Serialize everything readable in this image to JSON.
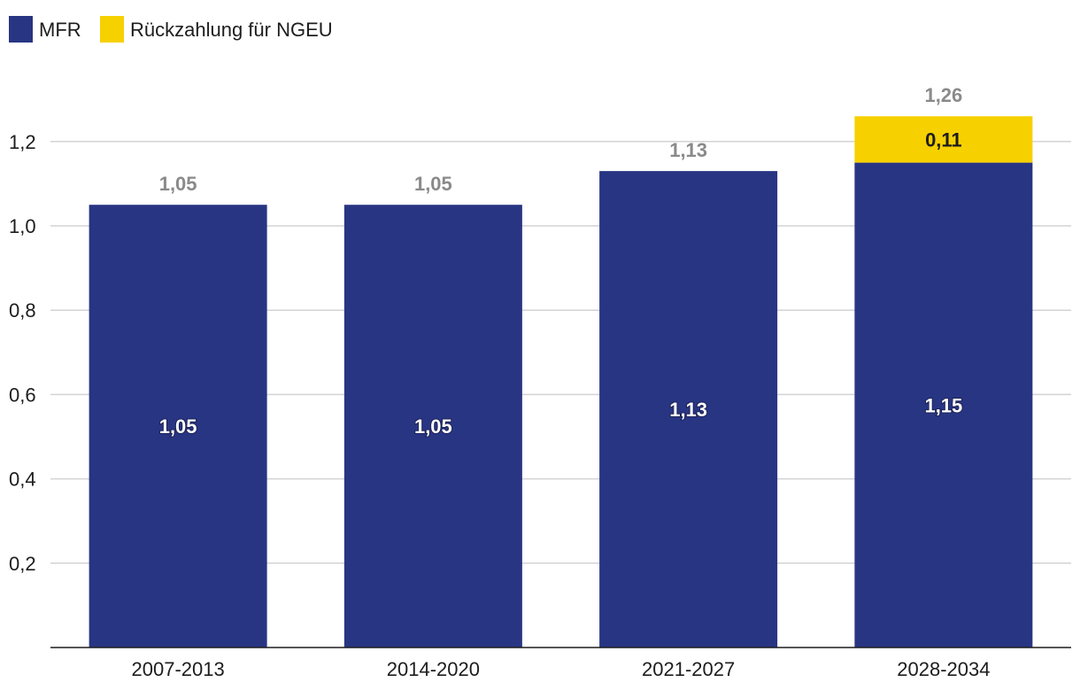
{
  "chart_data": {
    "type": "bar",
    "stacked": true,
    "title": "",
    "xlabel": "",
    "ylabel": "",
    "ylim": [
      0,
      1.3
    ],
    "grid": true,
    "legend_position": "top-left",
    "categories": [
      "2007-2013",
      "2014-2020",
      "2021-2027",
      "2028-2034"
    ],
    "series": [
      {
        "name": "MFR",
        "color": "#283583",
        "values": [
          1.05,
          1.05,
          1.13,
          1.15
        ],
        "labels": [
          "1,05",
          "1,05",
          "1,13",
          "1,15"
        ]
      },
      {
        "name": "Rückzahlung für NGEU",
        "color": "#f7d000",
        "values": [
          0,
          0,
          0,
          0.11
        ],
        "labels": [
          "",
          "",
          "",
          "0,11"
        ]
      }
    ],
    "totals": [
      1.05,
      1.05,
      1.13,
      1.26
    ],
    "total_labels": [
      "1,05",
      "1,05",
      "1,13",
      "1,26"
    ],
    "y_ticks": [
      {
        "value": 0.2,
        "label": "0,2"
      },
      {
        "value": 0.4,
        "label": "0,4"
      },
      {
        "value": 0.6,
        "label": "0,6"
      },
      {
        "value": 0.8,
        "label": "0,8"
      },
      {
        "value": 1.0,
        "label": "1,0"
      },
      {
        "value": 1.2,
        "label": "1,2"
      }
    ]
  }
}
